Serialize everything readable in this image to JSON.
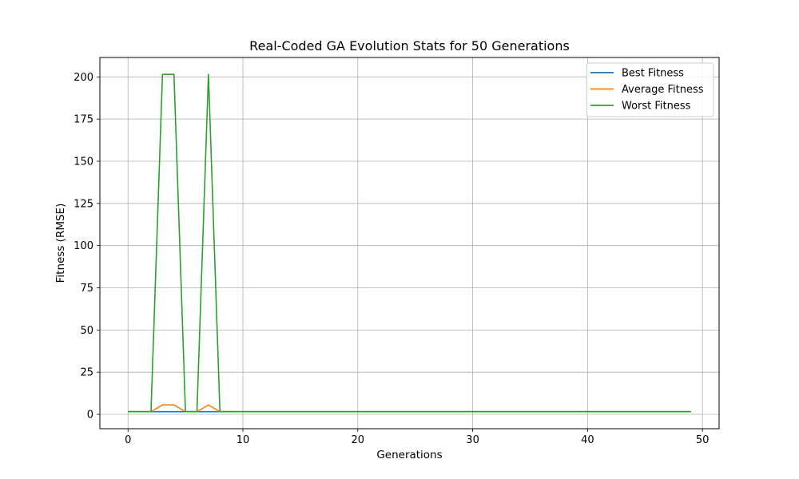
{
  "chart_data": {
    "type": "line",
    "title": "Real-Coded GA Evolution Stats for 50 Generations",
    "xlabel": "Generations",
    "ylabel": "Fitness (RMSE)",
    "xlim": [
      -2.45,
      51.45
    ],
    "ylim": [
      -8.5,
      211.5
    ],
    "x_ticks": [
      0,
      10,
      20,
      30,
      40,
      50
    ],
    "y_ticks": [
      0,
      25,
      50,
      75,
      100,
      125,
      150,
      175,
      200
    ],
    "grid": true,
    "legend_position": "top-right",
    "x": [
      0,
      1,
      2,
      3,
      4,
      5,
      6,
      7,
      8,
      9,
      10,
      11,
      12,
      13,
      14,
      15,
      16,
      17,
      18,
      19,
      20,
      21,
      22,
      23,
      24,
      25,
      26,
      27,
      28,
      29,
      30,
      31,
      32,
      33,
      34,
      35,
      36,
      37,
      38,
      39,
      40,
      41,
      42,
      43,
      44,
      45,
      46,
      47,
      48,
      49
    ],
    "series": [
      {
        "name": "Best Fitness",
        "color": "#1f77b4",
        "values": [
          1.6,
          1.6,
          1.6,
          1.6,
          1.6,
          1.6,
          1.6,
          1.6,
          1.6,
          1.6,
          1.6,
          1.6,
          1.6,
          1.6,
          1.6,
          1.6,
          1.6,
          1.6,
          1.6,
          1.6,
          1.6,
          1.6,
          1.6,
          1.6,
          1.6,
          1.6,
          1.6,
          1.6,
          1.6,
          1.6,
          1.6,
          1.6,
          1.6,
          1.6,
          1.6,
          1.6,
          1.6,
          1.6,
          1.6,
          1.6,
          1.6,
          1.6,
          1.6,
          1.6,
          1.6,
          1.6,
          1.6,
          1.6,
          1.6,
          1.6
        ]
      },
      {
        "name": "Average Fitness",
        "color": "#ff7f0e",
        "values": [
          1.6,
          1.6,
          1.6,
          5.6,
          5.6,
          1.6,
          1.6,
          5.6,
          1.6,
          1.6,
          1.6,
          1.6,
          1.6,
          1.6,
          1.6,
          1.6,
          1.6,
          1.6,
          1.6,
          1.6,
          1.6,
          1.6,
          1.6,
          1.6,
          1.6,
          1.6,
          1.6,
          1.6,
          1.6,
          1.6,
          1.6,
          1.6,
          1.6,
          1.6,
          1.6,
          1.6,
          1.6,
          1.6,
          1.6,
          1.6,
          1.6,
          1.6,
          1.6,
          1.6,
          1.6,
          1.6,
          1.6,
          1.6,
          1.6,
          1.6
        ]
      },
      {
        "name": "Worst Fitness",
        "color": "#2ca02c",
        "values": [
          1.6,
          1.6,
          1.6,
          201.5,
          201.5,
          1.6,
          1.6,
          201.5,
          1.6,
          1.6,
          1.6,
          1.6,
          1.6,
          1.6,
          1.6,
          1.6,
          1.6,
          1.6,
          1.6,
          1.6,
          1.6,
          1.6,
          1.6,
          1.6,
          1.6,
          1.6,
          1.6,
          1.6,
          1.6,
          1.6,
          1.6,
          1.6,
          1.6,
          1.6,
          1.6,
          1.6,
          1.6,
          1.6,
          1.6,
          1.6,
          1.6,
          1.6,
          1.6,
          1.6,
          1.6,
          1.6,
          1.6,
          1.6,
          1.6,
          1.6
        ]
      }
    ]
  }
}
